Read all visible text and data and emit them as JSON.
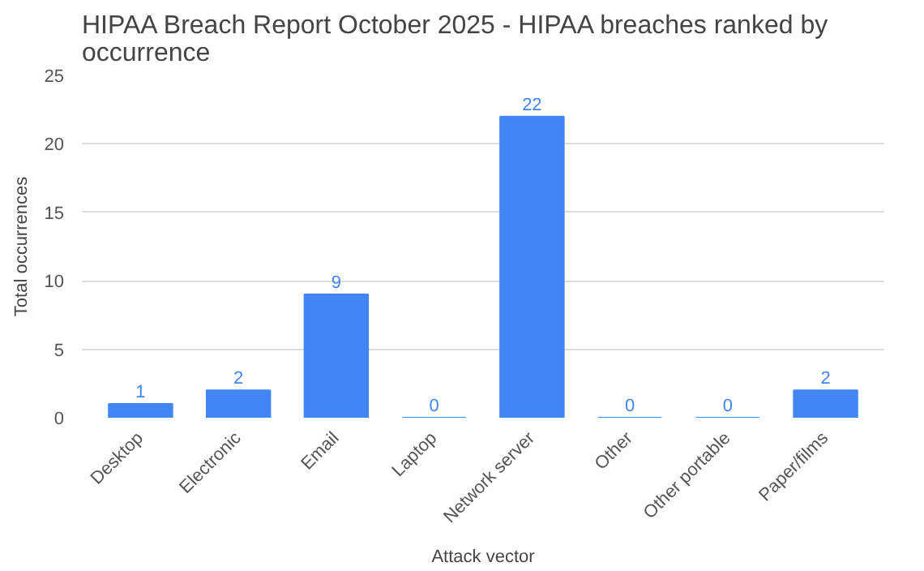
{
  "chart_data": {
    "type": "bar",
    "title": "HIPAA Breach Report October 2025 - HIPAA breaches ranked by occurrence",
    "xlabel": "Attack vector",
    "ylabel": "Total occurrences",
    "categories": [
      "Desktop",
      "Electronic",
      "Email",
      "Laptop",
      "Network server",
      "Other",
      "Other portable",
      "Paper/films"
    ],
    "values": [
      1,
      2,
      9,
      0,
      22,
      0,
      0,
      2
    ],
    "color": "#4285f4",
    "ylim": [
      0,
      25
    ],
    "yticks": [
      0,
      5,
      10,
      15,
      20,
      25
    ],
    "grid": "y",
    "data_labels": true
  }
}
